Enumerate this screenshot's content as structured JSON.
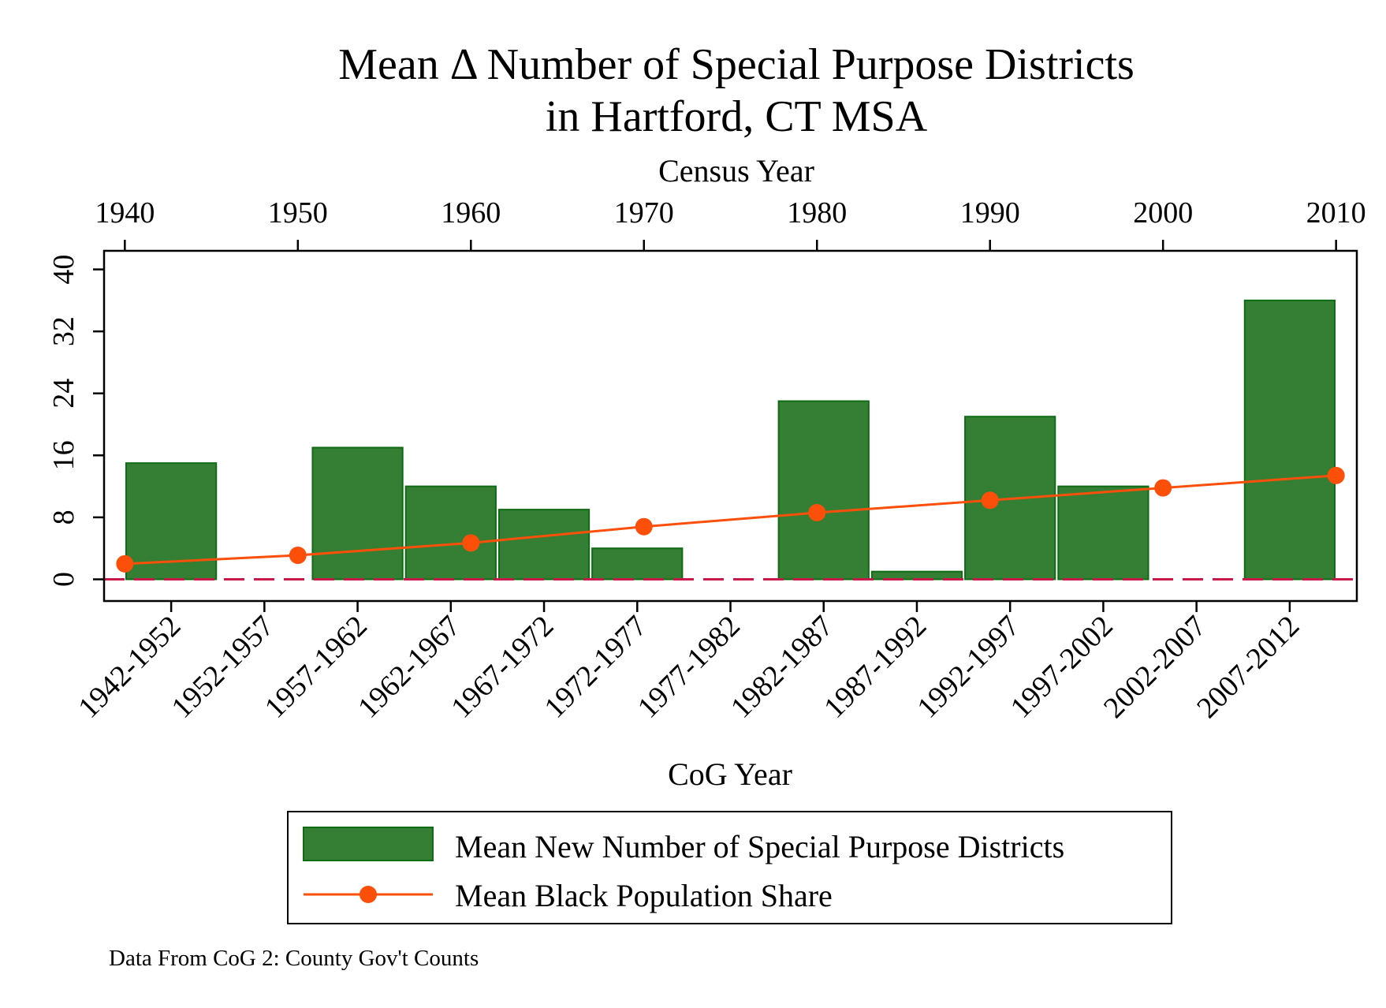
{
  "chart_data": {
    "type": "bar",
    "title": [
      "Mean Δ Number of Special Purpose Districts",
      "in Hartford, CT MSA"
    ],
    "top_axis": {
      "title": "Census Year",
      "ticks": [
        1940,
        1950,
        1960,
        1970,
        1980,
        1990,
        2000,
        2010
      ],
      "range": [
        1938.8,
        2011.2
      ]
    },
    "bottom_axis": {
      "title": "CoG Year",
      "categories": [
        "1942-1952",
        "1952-1957",
        "1957-1962",
        "1962-1967",
        "1967-1972",
        "1972-1977",
        "1977-1982",
        "1982-1987",
        "1987-1992",
        "1992-1997",
        "1997-2002",
        "2002-2007",
        "2007-2012"
      ]
    },
    "y_axis": {
      "ticks": [
        0,
        8,
        16,
        24,
        32,
        40
      ],
      "range": [
        -2.8,
        42.4
      ]
    },
    "series": [
      {
        "name": "Mean New Number of Special Purpose Districts",
        "type": "bar",
        "color": "#347f33",
        "values": [
          15,
          null,
          17,
          12,
          9,
          4,
          null,
          23,
          1,
          21,
          12,
          null,
          36
        ]
      },
      {
        "name": "Mean Black Population Share",
        "type": "line",
        "color": "#fc4f09",
        "x": [
          1940,
          1950,
          1960,
          1970,
          1980,
          1990,
          2000,
          2010
        ],
        "values": [
          2.0,
          3.1,
          4.7,
          6.8,
          8.6,
          10.2,
          11.8,
          13.4
        ]
      }
    ],
    "reference_line": {
      "y": 0,
      "color": "#c8194c",
      "style": "dashed"
    },
    "grid": false,
    "legend_position": "bottom",
    "note": "Data From CoG 2: County Gov't Counts"
  }
}
